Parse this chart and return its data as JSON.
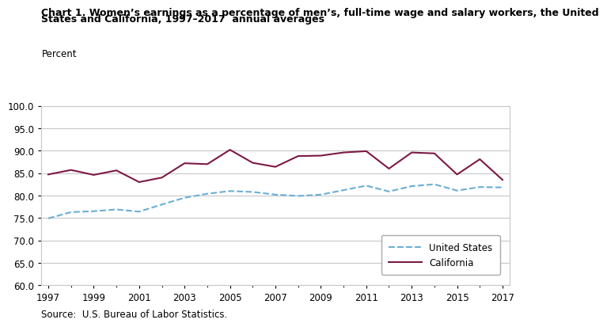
{
  "title_line1": "Chart 1. Women’s earnings as a percentage of men’s, full-time wage and salary workers, the United",
  "title_line2": "States and California, 1997–2017  annual averages",
  "ylabel": "Percent",
  "source": "Source:  U.S. Bureau of Labor Statistics.",
  "years": [
    1997,
    1998,
    1999,
    2000,
    2001,
    2002,
    2003,
    2004,
    2005,
    2006,
    2007,
    2008,
    2009,
    2010,
    2011,
    2012,
    2013,
    2014,
    2015,
    2016,
    2017
  ],
  "us_values": [
    74.9,
    76.3,
    76.5,
    76.9,
    76.4,
    78.0,
    79.5,
    80.4,
    81.0,
    80.8,
    80.2,
    79.9,
    80.2,
    81.2,
    82.2,
    80.9,
    82.1,
    82.5,
    81.1,
    81.9,
    81.8
  ],
  "ca_values": [
    84.7,
    85.7,
    84.6,
    85.6,
    83.0,
    84.0,
    87.2,
    87.0,
    90.2,
    87.3,
    86.4,
    88.8,
    88.9,
    89.6,
    89.9,
    86.0,
    89.6,
    89.4,
    84.7,
    88.1,
    83.5
  ],
  "us_color": "#6baed6",
  "ca_color": "#7b1a45",
  "ylim": [
    60.0,
    100.0
  ],
  "yticks": [
    60.0,
    65.0,
    70.0,
    75.0,
    80.0,
    85.0,
    90.0,
    95.0,
    100.0
  ],
  "xticks": [
    1997,
    1999,
    2001,
    2003,
    2005,
    2007,
    2009,
    2011,
    2013,
    2015,
    2017
  ],
  "background_color": "#ffffff",
  "plot_bg_color": "#ffffff",
  "grid_color": "#c8c8c8",
  "title_fontsize": 9.0,
  "label_fontsize": 8.5,
  "tick_fontsize": 8.5,
  "legend_fontsize": 8.5
}
